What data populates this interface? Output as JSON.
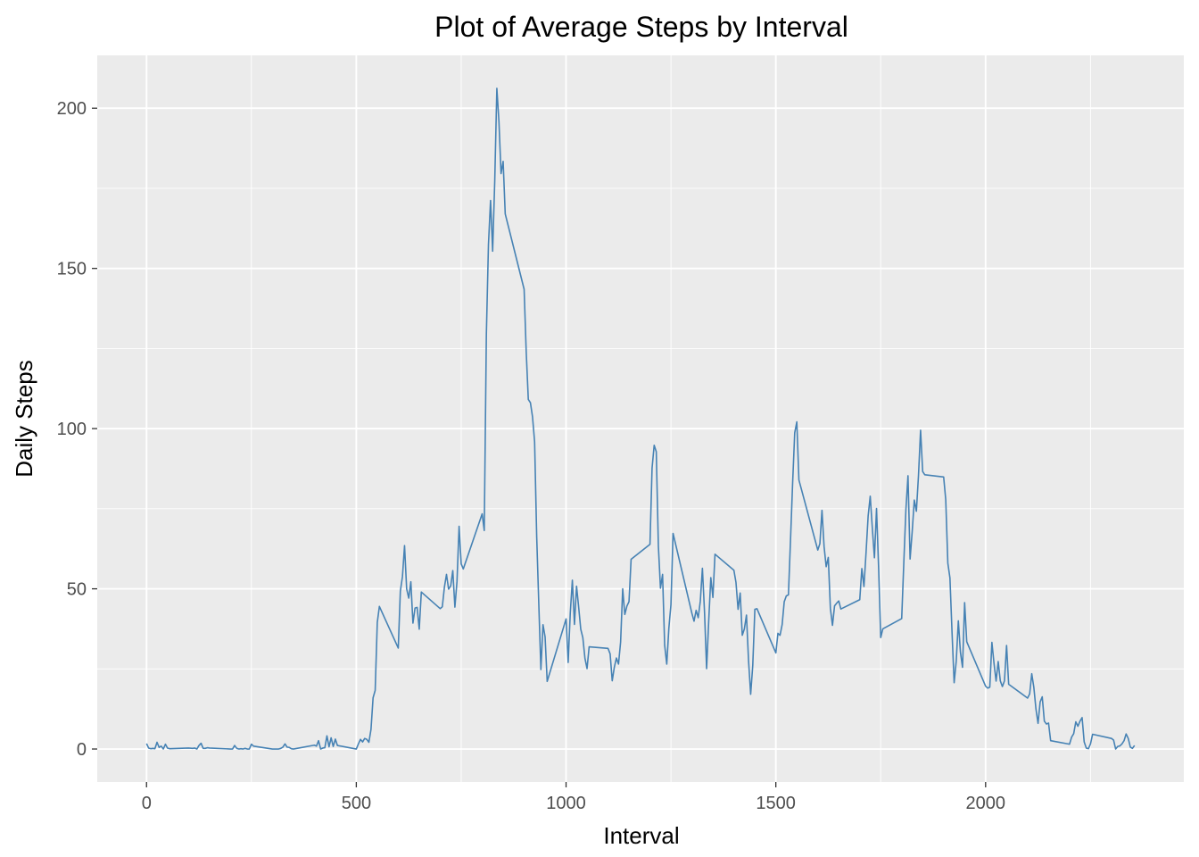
{
  "chart_data": {
    "type": "line",
    "title": "Plot of Average Steps by Interval",
    "xlabel": "Interval",
    "ylabel": "Daily Steps",
    "xlim": [
      -117.5,
      2472.5
    ],
    "ylim": [
      -10.3,
      216.5
    ],
    "x_ticks": [
      0,
      500,
      1000,
      1500,
      2000
    ],
    "y_ticks": [
      0,
      50,
      100,
      150,
      200
    ],
    "grid": true,
    "background": "#ebebeb",
    "grid_color": "#ffffff",
    "line_color": "#4682b4",
    "series": [
      {
        "points": [
          [
            0,
            1.7
          ],
          [
            5,
            0.3
          ],
          [
            10,
            0.1
          ],
          [
            15,
            0.2
          ],
          [
            20,
            0.1
          ],
          [
            25,
            2.1
          ],
          [
            30,
            0.5
          ],
          [
            35,
            0.9
          ],
          [
            40,
            0.0
          ],
          [
            45,
            1.5
          ],
          [
            50,
            0.3
          ],
          [
            55,
            0.1
          ],
          [
            100,
            0.3
          ],
          [
            110,
            0.2
          ],
          [
            115,
            0.3
          ],
          [
            120,
            0.0
          ],
          [
            125,
            1.1
          ],
          [
            130,
            1.8
          ],
          [
            135,
            0.2
          ],
          [
            140,
            0.2
          ],
          [
            145,
            0.4
          ],
          [
            150,
            0.3
          ],
          [
            200,
            0.0
          ],
          [
            205,
            0.0
          ],
          [
            210,
            1.1
          ],
          [
            215,
            0.2
          ],
          [
            220,
            0.0
          ],
          [
            225,
            0.1
          ],
          [
            230,
            0.0
          ],
          [
            235,
            0.2
          ],
          [
            240,
            0.0
          ],
          [
            245,
            0.0
          ],
          [
            250,
            1.5
          ],
          [
            255,
            0.9
          ],
          [
            300,
            0.0
          ],
          [
            305,
            0.0
          ],
          [
            310,
            0.0
          ],
          [
            315,
            0.0
          ],
          [
            320,
            0.2
          ],
          [
            325,
            0.6
          ],
          [
            330,
            1.6
          ],
          [
            335,
            0.6
          ],
          [
            340,
            0.5
          ],
          [
            345,
            0.1
          ],
          [
            350,
            0.0
          ],
          [
            400,
            1.2
          ],
          [
            405,
            0.9
          ],
          [
            410,
            2.6
          ],
          [
            415,
            0.0
          ],
          [
            420,
            0.3
          ],
          [
            425,
            0.4
          ],
          [
            430,
            4.1
          ],
          [
            435,
            0.7
          ],
          [
            440,
            3.5
          ],
          [
            445,
            0.8
          ],
          [
            450,
            3.1
          ],
          [
            455,
            1.1
          ],
          [
            500,
            0.0
          ],
          [
            505,
            1.6
          ],
          [
            510,
            3.0
          ],
          [
            515,
            2.2
          ],
          [
            520,
            3.3
          ],
          [
            525,
            3.0
          ],
          [
            530,
            2.1
          ],
          [
            535,
            6.1
          ],
          [
            540,
            16.0
          ],
          [
            545,
            18.3
          ],
          [
            550,
            39.5
          ],
          [
            555,
            44.5
          ],
          [
            600,
            31.5
          ],
          [
            605,
            49.3
          ],
          [
            610,
            53.8
          ],
          [
            615,
            63.5
          ],
          [
            620,
            50.0
          ],
          [
            625,
            47.1
          ],
          [
            630,
            52.2
          ],
          [
            635,
            39.3
          ],
          [
            640,
            44.0
          ],
          [
            645,
            44.2
          ],
          [
            650,
            37.4
          ],
          [
            655,
            49.0
          ],
          [
            700,
            43.8
          ],
          [
            705,
            44.4
          ],
          [
            710,
            50.5
          ],
          [
            715,
            54.5
          ],
          [
            720,
            49.9
          ],
          [
            725,
            50.9
          ],
          [
            730,
            55.7
          ],
          [
            735,
            44.3
          ],
          [
            740,
            52.3
          ],
          [
            745,
            69.5
          ],
          [
            750,
            57.8
          ],
          [
            755,
            56.2
          ],
          [
            800,
            73.4
          ],
          [
            805,
            68.2
          ],
          [
            810,
            129.4
          ],
          [
            815,
            157.5
          ],
          [
            820,
            171.2
          ],
          [
            825,
            155.4
          ],
          [
            830,
            177.3
          ],
          [
            835,
            206.2
          ],
          [
            840,
            195.9
          ],
          [
            845,
            179.6
          ],
          [
            850,
            183.4
          ],
          [
            855,
            167.0
          ],
          [
            900,
            143.5
          ],
          [
            905,
            124.0
          ],
          [
            910,
            109.1
          ],
          [
            915,
            108.1
          ],
          [
            920,
            103.7
          ],
          [
            925,
            95.9
          ],
          [
            930,
            66.2
          ],
          [
            935,
            45.2
          ],
          [
            940,
            24.8
          ],
          [
            945,
            38.8
          ],
          [
            950,
            35.0
          ],
          [
            955,
            21.1
          ],
          [
            1000,
            40.6
          ],
          [
            1005,
            27.0
          ],
          [
            1010,
            42.4
          ],
          [
            1015,
            52.7
          ],
          [
            1020,
            38.9
          ],
          [
            1025,
            50.8
          ],
          [
            1030,
            44.3
          ],
          [
            1035,
            37.4
          ],
          [
            1040,
            34.7
          ],
          [
            1045,
            28.3
          ],
          [
            1050,
            25.1
          ],
          [
            1055,
            31.9
          ],
          [
            1100,
            31.4
          ],
          [
            1105,
            29.7
          ],
          [
            1110,
            21.3
          ],
          [
            1115,
            25.5
          ],
          [
            1120,
            28.4
          ],
          [
            1125,
            26.5
          ],
          [
            1130,
            33.4
          ],
          [
            1135,
            50.0
          ],
          [
            1140,
            42.0
          ],
          [
            1145,
            44.6
          ],
          [
            1150,
            46.0
          ],
          [
            1155,
            59.2
          ],
          [
            1200,
            63.9
          ],
          [
            1205,
            87.7
          ],
          [
            1210,
            94.8
          ],
          [
            1215,
            92.8
          ],
          [
            1220,
            63.4
          ],
          [
            1225,
            50.2
          ],
          [
            1230,
            54.5
          ],
          [
            1235,
            32.4
          ],
          [
            1240,
            26.5
          ],
          [
            1245,
            37.7
          ],
          [
            1250,
            45.1
          ],
          [
            1255,
            67.3
          ],
          [
            1300,
            42.3
          ],
          [
            1305,
            39.9
          ],
          [
            1310,
            43.3
          ],
          [
            1315,
            40.98
          ],
          [
            1320,
            46.2
          ],
          [
            1325,
            56.4
          ],
          [
            1330,
            42.8
          ],
          [
            1335,
            25.1
          ],
          [
            1340,
            39.96
          ],
          [
            1345,
            53.5
          ],
          [
            1350,
            47.3
          ],
          [
            1355,
            60.8
          ],
          [
            1400,
            55.8
          ],
          [
            1405,
            51.96
          ],
          [
            1410,
            43.6
          ],
          [
            1415,
            48.7
          ],
          [
            1420,
            35.5
          ],
          [
            1425,
            37.5
          ],
          [
            1430,
            41.8
          ],
          [
            1435,
            27.5
          ],
          [
            1440,
            17.1
          ],
          [
            1445,
            26.1
          ],
          [
            1450,
            43.6
          ],
          [
            1455,
            43.8
          ],
          [
            1500,
            30.0
          ],
          [
            1505,
            36.1
          ],
          [
            1510,
            35.5
          ],
          [
            1515,
            38.8
          ],
          [
            1520,
            45.96
          ],
          [
            1525,
            47.8
          ],
          [
            1530,
            48.1
          ],
          [
            1535,
            65.3
          ],
          [
            1540,
            82.9
          ],
          [
            1545,
            98.7
          ],
          [
            1550,
            102.1
          ],
          [
            1555,
            83.96
          ],
          [
            1600,
            62.1
          ],
          [
            1605,
            64.1
          ],
          [
            1610,
            74.5
          ],
          [
            1615,
            63.2
          ],
          [
            1620,
            56.9
          ],
          [
            1625,
            59.8
          ],
          [
            1630,
            43.9
          ],
          [
            1635,
            38.6
          ],
          [
            1640,
            44.7
          ],
          [
            1645,
            45.5
          ],
          [
            1650,
            46.2
          ],
          [
            1655,
            43.7
          ],
          [
            1700,
            46.6
          ],
          [
            1705,
            56.3
          ],
          [
            1710,
            50.7
          ],
          [
            1715,
            61.2
          ],
          [
            1720,
            72.7
          ],
          [
            1725,
            78.9
          ],
          [
            1730,
            68.9
          ],
          [
            1735,
            59.7
          ],
          [
            1740,
            75.1
          ],
          [
            1745,
            56.5
          ],
          [
            1750,
            34.8
          ],
          [
            1755,
            37.5
          ],
          [
            1800,
            40.7
          ],
          [
            1805,
            58.0
          ],
          [
            1810,
            74.7
          ],
          [
            1815,
            85.3
          ],
          [
            1820,
            59.3
          ],
          [
            1825,
            67.8
          ],
          [
            1830,
            77.7
          ],
          [
            1835,
            74.2
          ],
          [
            1840,
            85.3
          ],
          [
            1845,
            99.5
          ],
          [
            1850,
            86.6
          ],
          [
            1855,
            85.6
          ],
          [
            1900,
            84.9
          ],
          [
            1905,
            77.8
          ],
          [
            1910,
            58.0
          ],
          [
            1915,
            53.4
          ],
          [
            1920,
            36.3
          ],
          [
            1925,
            20.7
          ],
          [
            1930,
            27.4
          ],
          [
            1935,
            40.0
          ],
          [
            1940,
            30.2
          ],
          [
            1945,
            25.5
          ],
          [
            1950,
            45.7
          ],
          [
            1955,
            33.5
          ],
          [
            2000,
            19.6
          ],
          [
            2005,
            19.0
          ],
          [
            2010,
            19.3
          ],
          [
            2015,
            33.3
          ],
          [
            2020,
            26.8
          ],
          [
            2025,
            21.2
          ],
          [
            2030,
            27.3
          ],
          [
            2035,
            21.3
          ],
          [
            2040,
            19.5
          ],
          [
            2045,
            21.3
          ],
          [
            2050,
            32.3
          ],
          [
            2055,
            20.2
          ],
          [
            2100,
            15.9
          ],
          [
            2105,
            17.2
          ],
          [
            2110,
            23.5
          ],
          [
            2115,
            19.2
          ],
          [
            2120,
            12.5
          ],
          [
            2125,
            8.0
          ],
          [
            2130,
            14.7
          ],
          [
            2135,
            16.3
          ],
          [
            2140,
            8.7
          ],
          [
            2145,
            7.8
          ],
          [
            2150,
            8.1
          ],
          [
            2155,
            2.6
          ],
          [
            2200,
            1.5
          ],
          [
            2205,
            3.7
          ],
          [
            2210,
            4.8
          ],
          [
            2215,
            8.5
          ],
          [
            2220,
            7.1
          ],
          [
            2225,
            8.7
          ],
          [
            2230,
            9.8
          ],
          [
            2235,
            2.2
          ],
          [
            2240,
            0.3
          ],
          [
            2245,
            0.1
          ],
          [
            2250,
            1.6
          ],
          [
            2255,
            4.6
          ],
          [
            2300,
            3.3
          ],
          [
            2305,
            2.8
          ],
          [
            2310,
            0.0
          ],
          [
            2315,
            0.8
          ],
          [
            2320,
            0.96
          ],
          [
            2325,
            1.6
          ],
          [
            2330,
            2.6
          ],
          [
            2335,
            4.7
          ],
          [
            2340,
            3.3
          ],
          [
            2345,
            0.6
          ],
          [
            2350,
            0.2
          ],
          [
            2355,
            1.1
          ]
        ]
      }
    ]
  }
}
